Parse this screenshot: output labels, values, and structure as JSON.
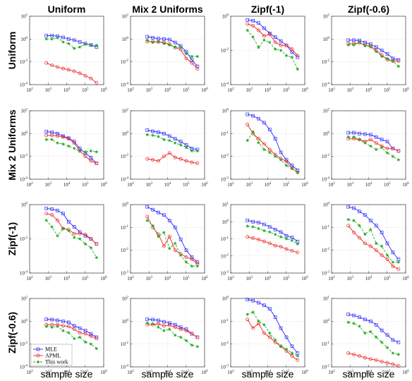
{
  "column_titles": [
    "Uniform",
    "Mix 2 Uniforms",
    "Zipf(-1)",
    "Zipf(-0.6)"
  ],
  "row_titles": [
    "Uniform",
    "Mix 2 Uniforms",
    "Zipf(-1)",
    "Zipf(-0.6)"
  ],
  "xlabel": "sample size",
  "legend": [
    "MLE",
    "APML",
    "This work"
  ],
  "colors": {
    "MLE": "#2b2bff",
    "APML": "#ee2222",
    "This work": "#22aa22",
    "grid": "#dddddd",
    "axis": "#333333"
  },
  "chart_data": {
    "type": "line",
    "x": [
      800,
      1600,
      3200,
      6400,
      12800,
      25600,
      51200,
      102400,
      204800,
      409600
    ],
    "x_scale": "log",
    "xlim": [
      100,
      1000000
    ],
    "x_ticks": [
      "10^2",
      "10^3",
      "10^4",
      "10^5",
      "10^6"
    ],
    "y_scale": "log",
    "grid": true,
    "legend_position": "bottom-left of bottom-left panel",
    "panels": [
      {
        "row": "Uniform",
        "col": "Uniform",
        "ylim": [
          0.0001,
          100
        ],
        "yticks": [
          "10^-4",
          "10^-2",
          "10^0",
          "10^2"
        ],
        "series": [
          {
            "name": "MLE",
            "values": [
              2.0,
              2.0,
              1.8,
              1.4,
              1.0,
              0.8,
              0.55,
              0.4,
              0.3,
              0.2
            ]
          },
          {
            "name": "APML",
            "values": [
              0.008,
              0.005,
              0.0035,
              0.0026,
              0.002,
              0.0015,
              0.001,
              0.0006,
              0.00035,
              0.00015
            ]
          },
          {
            "name": "This work",
            "values": [
              1.0,
              1.0,
              1.3,
              0.55,
              0.4,
              0.15,
              0.2,
              0.35,
              0.3,
              0.28
            ]
          }
        ]
      },
      {
        "row": "Uniform",
        "col": "Mix 2 Uniforms",
        "ylim": [
          0.0001,
          100
        ],
        "yticks": [
          "10^-4",
          "10^-2",
          "10^0",
          "10^2"
        ],
        "series": [
          {
            "name": "MLE",
            "values": [
              1.6,
              1.3,
              1.1,
              1.0,
              0.9,
              0.5,
              0.25,
              0.08,
              0.015,
              0.004
            ]
          },
          {
            "name": "APML",
            "values": [
              0.6,
              0.6,
              0.55,
              0.5,
              0.35,
              0.18,
              0.12,
              0.02,
              0.008,
              0.0025
            ]
          },
          {
            "name": "This work",
            "values": [
              0.8,
              0.5,
              0.6,
              0.4,
              0.3,
              0.2,
              0.18,
              0.05,
              0.03,
              0.03
            ]
          }
        ]
      },
      {
        "row": "Uniform",
        "col": "Zipf(-1)",
        "ylim": [
          0.0001,
          1
        ],
        "yticks": [
          "10^-4",
          "10^-2",
          "10^0"
        ],
        "series": [
          {
            "name": "MLE",
            "values": [
              0.6,
              0.55,
              0.4,
              0.2,
              0.1,
              0.06,
              0.035,
              0.02,
              0.008,
              0.004
            ]
          },
          {
            "name": "APML",
            "values": [
              0.35,
              0.28,
              0.15,
              0.07,
              0.09,
              0.03,
              0.02,
              0.02,
              0.012,
              0.005
            ]
          },
          {
            "name": "This work",
            "values": [
              0.15,
              0.06,
              0.015,
              0.04,
              0.03,
              0.012,
              0.01,
              0.005,
              0.004,
              0.0008
            ]
          }
        ]
      },
      {
        "row": "Uniform",
        "col": "Zipf(-0.6)",
        "ylim": [
          0.0001,
          100
        ],
        "yticks": [
          "10^-4",
          "10^-2",
          "10^0",
          "10^2"
        ],
        "series": [
          {
            "name": "MLE",
            "values": [
              0.8,
              0.8,
              0.75,
              0.5,
              0.35,
              0.2,
              0.1,
              0.05,
              0.02,
              0.015
            ]
          },
          {
            "name": "APML",
            "values": [
              0.4,
              0.4,
              0.45,
              0.3,
              0.25,
              0.1,
              0.04,
              0.015,
              0.012,
              0.012
            ]
          },
          {
            "name": "This work",
            "values": [
              0.3,
              0.3,
              0.55,
              0.25,
              0.2,
              0.08,
              0.03,
              0.02,
              0.012,
              0.004
            ]
          }
        ]
      },
      {
        "row": "Mix 2 Uniforms",
        "col": "Uniform",
        "ylim": [
          0.0001,
          100
        ],
        "yticks": [
          "10^-4",
          "10^-2",
          "10^0",
          "10^2"
        ],
        "series": [
          {
            "name": "MLE",
            "values": [
              1.5,
              1.3,
              1.0,
              0.6,
              0.4,
              0.2,
              0.05,
              0.02,
              0.008,
              0.0025
            ]
          },
          {
            "name": "APML",
            "values": [
              0.7,
              0.7,
              0.6,
              0.5,
              0.35,
              0.15,
              0.03,
              0.01,
              0.004,
              0.0025
            ]
          },
          {
            "name": "This work",
            "values": [
              0.3,
              0.3,
              0.15,
              0.12,
              0.08,
              0.05,
              0.03,
              0.025,
              0.03,
              0.025
            ]
          }
        ]
      },
      {
        "row": "Mix 2 Uniforms",
        "col": "Mix 2 Uniforms",
        "ylim": [
          0.0001,
          100
        ],
        "yticks": [
          "10^-4",
          "10^-2",
          "10^0",
          "10^2"
        ],
        "series": [
          {
            "name": "MLE",
            "values": [
              2.0,
              1.6,
              1.3,
              1.0,
              0.6,
              0.35,
              0.2,
              0.1,
              0.05,
              0.04
            ]
          },
          {
            "name": "APML",
            "values": [
              0.006,
              0.005,
              0.004,
              0.01,
              0.02,
              0.008,
              0.006,
              0.004,
              0.003,
              0.0025
            ]
          },
          {
            "name": "This work",
            "values": [
              0.8,
              0.7,
              0.55,
              0.3,
              0.25,
              0.15,
              0.1,
              0.06,
              0.03,
              0.03
            ]
          }
        ]
      },
      {
        "row": "Mix 2 Uniforms",
        "col": "Zipf(-1)",
        "ylim": [
          0.001,
          1
        ],
        "yticks": [
          "10^-3",
          "10^-2",
          "10^-1",
          "10^0"
        ],
        "series": [
          {
            "name": "MLE",
            "values": [
              0.7,
              0.6,
              0.45,
              0.3,
              0.15,
              0.06,
              0.015,
              0.007,
              0.004,
              0.0025
            ]
          },
          {
            "name": "APML",
            "values": [
              0.25,
              0.1,
              0.06,
              0.035,
              0.02,
              0.012,
              0.008,
              0.006,
              0.003,
              0.002
            ]
          },
          {
            "name": "This work",
            "values": [
              0.05,
              0.12,
              0.04,
              0.02,
              0.015,
              0.01,
              0.007,
              0.004,
              0.003,
              0.002
            ]
          }
        ]
      },
      {
        "row": "Mix 2 Uniforms",
        "col": "Zipf(-0.6)",
        "ylim": [
          0.0001,
          100
        ],
        "yticks": [
          "10^-4",
          "10^-2",
          "10^0",
          "10^2"
        ],
        "series": [
          {
            "name": "MLE",
            "values": [
              1.2,
              1.2,
              1.0,
              0.9,
              0.8,
              0.5,
              0.3,
              0.2,
              0.05,
              0.03
            ]
          },
          {
            "name": "APML",
            "values": [
              0.35,
              0.35,
              0.3,
              0.2,
              0.3,
              0.15,
              0.08,
              0.05,
              0.05,
              0.03
            ]
          },
          {
            "name": "This work",
            "values": [
              0.5,
              0.5,
              0.3,
              0.15,
              0.08,
              0.04,
              0.06,
              0.02,
              0.01,
              0.005
            ]
          }
        ]
      },
      {
        "row": "Zipf(-1)",
        "col": "Uniform",
        "ylim": [
          0.0001,
          1
        ],
        "yticks": [
          "10^-4",
          "10^-2",
          "10^0"
        ],
        "series": [
          {
            "name": "MLE",
            "values": [
              0.6,
              0.55,
              0.45,
              0.3,
              0.1,
              0.05,
              0.025,
              0.015,
              0.01,
              0.005
            ]
          },
          {
            "name": "APML",
            "values": [
              0.3,
              0.25,
              0.12,
              0.04,
              0.035,
              0.02,
              0.02,
              0.018,
              0.01,
              0.005
            ]
          },
          {
            "name": "This work",
            "values": [
              0.12,
              0.05,
              0.015,
              0.04,
              0.03,
              0.012,
              0.01,
              0.005,
              0.003,
              0.0008
            ]
          }
        ]
      },
      {
        "row": "Zipf(-1)",
        "col": "Mix 2 Uniforms",
        "ylim": [
          0.001,
          1
        ],
        "yticks": [
          "10^-3",
          "10^-2",
          "10^-1",
          "10^0"
        ],
        "series": [
          {
            "name": "MLE",
            "values": [
              0.8,
              0.6,
              0.45,
              0.35,
              0.2,
              0.1,
              0.03,
              0.01,
              0.005,
              0.003
            ]
          },
          {
            "name": "APML",
            "values": [
              0.3,
              0.1,
              0.05,
              0.015,
              0.04,
              0.01,
              0.007,
              0.005,
              0.004,
              0.0025
            ]
          },
          {
            "name": "This work",
            "values": [
              0.2,
              0.12,
              0.04,
              0.06,
              0.012,
              0.02,
              0.006,
              0.003,
              0.002,
              0.002
            ]
          }
        ]
      },
      {
        "row": "Zipf(-1)",
        "col": "Zipf(-1)",
        "ylim": [
          0.001,
          10
        ],
        "yticks": [
          "10^-3",
          "10^-2",
          "10^-1",
          "10^0",
          "10^1"
        ],
        "series": [
          {
            "name": "MLE",
            "values": [
              1.2,
              1.0,
              0.9,
              0.7,
              0.5,
              0.35,
              0.25,
              0.15,
              0.12,
              0.07
            ]
          },
          {
            "name": "APML",
            "values": [
              0.13,
              0.11,
              0.09,
              0.07,
              0.055,
              0.04,
              0.035,
              0.025,
              0.02,
              0.016
            ]
          },
          {
            "name": "This work",
            "values": [
              0.55,
              0.5,
              0.4,
              0.3,
              0.25,
              0.18,
              0.13,
              0.1,
              0.08,
              0.05
            ]
          }
        ]
      },
      {
        "row": "Zipf(-1)",
        "col": "Zipf(-0.6)",
        "ylim": [
          0.001,
          1
        ],
        "yticks": [
          "10^-3",
          "10^-2",
          "10^-1",
          "10^0"
        ],
        "series": [
          {
            "name": "MLE",
            "values": [
              0.8,
              0.7,
              0.5,
              0.35,
              0.2,
              0.12,
              0.06,
              0.02,
              0.008,
              0.004
            ]
          },
          {
            "name": "APML",
            "values": [
              0.12,
              0.06,
              0.035,
              0.02,
              0.015,
              0.01,
              0.006,
              0.004,
              0.002,
              0.0015
            ]
          },
          {
            "name": "This work",
            "values": [
              0.22,
              0.2,
              0.12,
              0.05,
              0.08,
              0.02,
              0.015,
              0.006,
              0.003,
              0.003
            ]
          }
        ]
      },
      {
        "row": "Zipf(-0.6)",
        "col": "Uniform",
        "ylim": [
          0.0001,
          100
        ],
        "yticks": [
          "10^-4",
          "10^-2",
          "10^0",
          "10^2"
        ],
        "series": [
          {
            "name": "MLE",
            "values": [
              1.5,
              1.4,
              1.2,
              1.0,
              0.8,
              0.4,
              0.25,
              0.15,
              0.08,
              0.04
            ]
          },
          {
            "name": "APML",
            "values": [
              0.5,
              0.5,
              0.5,
              0.4,
              0.35,
              0.2,
              0.1,
              0.08,
              0.05,
              0.03
            ]
          },
          {
            "name": "This work",
            "values": [
              0.35,
              0.3,
              0.35,
              0.15,
              0.1,
              0.03,
              0.04,
              0.015,
              0.01,
              0.004
            ]
          }
        ]
      },
      {
        "row": "Zipf(-0.6)",
        "col": "Mix 2 Uniforms",
        "ylim": [
          0.0001,
          100
        ],
        "yticks": [
          "10^-4",
          "10^-2",
          "10^0",
          "10^2"
        ],
        "series": [
          {
            "name": "MLE",
            "values": [
              1.5,
              1.4,
              1.2,
              0.9,
              0.7,
              0.5,
              0.3,
              0.2,
              0.08,
              0.04
            ]
          },
          {
            "name": "APML",
            "values": [
              0.5,
              0.5,
              0.6,
              0.4,
              0.45,
              0.3,
              0.2,
              0.15,
              0.08,
              0.04
            ]
          },
          {
            "name": "This work",
            "values": [
              0.7,
              0.6,
              0.3,
              0.15,
              0.2,
              0.06,
              0.04,
              0.02,
              0.008,
              0.006
            ]
          }
        ]
      },
      {
        "row": "Zipf(-0.6)",
        "col": "Zipf(-1)",
        "ylim": [
          0.001,
          1
        ],
        "yticks": [
          "10^-3",
          "10^-2",
          "10^-1",
          "10^0"
        ],
        "series": [
          {
            "name": "MLE",
            "values": [
              0.9,
              0.8,
              0.65,
              0.5,
              0.35,
              0.15,
              0.05,
              0.02,
              0.008,
              0.004
            ]
          },
          {
            "name": "APML",
            "values": [
              0.12,
              0.05,
              0.08,
              0.03,
              0.02,
              0.012,
              0.008,
              0.005,
              0.003,
              0.002
            ]
          },
          {
            "name": "This work",
            "values": [
              0.2,
              0.25,
              0.1,
              0.07,
              0.03,
              0.015,
              0.008,
              0.006,
              0.004,
              0.003
            ]
          }
        ]
      },
      {
        "row": "Zipf(-0.6)",
        "col": "Zipf(-0.6)",
        "ylim": [
          0.01,
          10
        ],
        "yticks": [
          "10^-2",
          "10^-1",
          "10^0",
          "10^1"
        ],
        "series": [
          {
            "name": "MLE",
            "values": [
              2.0,
              1.8,
              1.5,
              1.2,
              1.0,
              0.7,
              0.4,
              0.25,
              0.15,
              0.12
            ]
          },
          {
            "name": "APML",
            "values": [
              0.04,
              0.035,
              0.03,
              0.025,
              0.022,
              0.02,
              0.017,
              0.015,
              0.013,
              0.011
            ]
          },
          {
            "name": "This work",
            "values": [
              0.9,
              0.8,
              0.6,
              0.3,
              0.35,
              0.2,
              0.12,
              0.07,
              0.04,
              0.035
            ]
          }
        ]
      }
    ]
  }
}
